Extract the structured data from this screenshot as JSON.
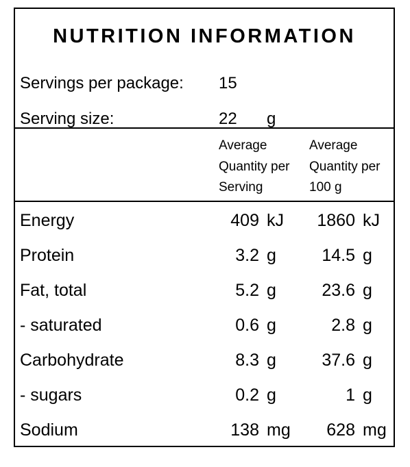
{
  "title": "NUTRITION INFORMATION",
  "servings_label": "Servings per package:",
  "servings_value": "15",
  "size_label": "Serving size:",
  "size_value": "22",
  "size_unit": "g",
  "col_serving": "Average\nQuantity per\nServing",
  "col_100g": "Average\nQuantity per\n100 g",
  "rows": [
    {
      "name": "Energy",
      "per_serving": "409",
      "per_serving_unit": "kJ",
      "per_100g": "1860",
      "per_100g_unit": "kJ"
    },
    {
      "name": "Protein",
      "per_serving": "3.2",
      "per_serving_unit": "g",
      "per_100g": "14.5",
      "per_100g_unit": "g"
    },
    {
      "name": "Fat, total",
      "per_serving": "5.2",
      "per_serving_unit": "g",
      "per_100g": "23.6",
      "per_100g_unit": "g"
    },
    {
      "name": "- saturated",
      "per_serving": "0.6",
      "per_serving_unit": "g",
      "per_100g": "2.8",
      "per_100g_unit": "g"
    },
    {
      "name": "Carbohydrate",
      "per_serving": "8.3",
      "per_serving_unit": "g",
      "per_100g": "37.6",
      "per_100g_unit": "g"
    },
    {
      "name": "- sugars",
      "per_serving": "0.2",
      "per_serving_unit": "g",
      "per_100g": "1",
      "per_100g_unit": "g"
    },
    {
      "name": "Sodium",
      "per_serving": "138",
      "per_serving_unit": "mg",
      "per_100g": "628",
      "per_100g_unit": "mg"
    }
  ]
}
